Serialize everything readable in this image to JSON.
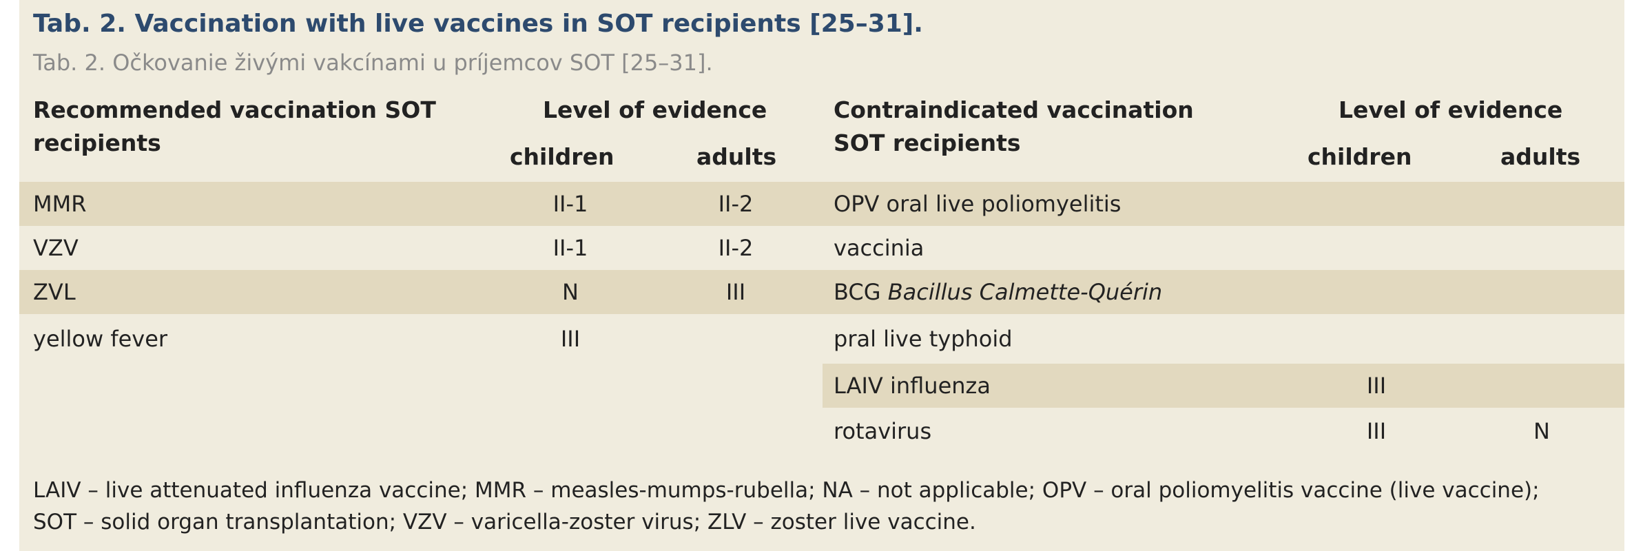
{
  "title": "Tab. 2. Vaccination with live vaccines in SOT recipients [25–31].",
  "subtitle": "Tab. 2. Očkovanie živými vakcínami u príjemcov SOT [25–31].",
  "left_header": {
    "col1_line1": "Recommended vaccination SOT",
    "col1_line2": "recipients",
    "level": "Level of evidence",
    "children": "children",
    "adults": "adults"
  },
  "right_header": {
    "col1_line1": "Contraindicated vaccination",
    "col1_line2": "SOT recipients",
    "level": "Level of evidence",
    "children": "children",
    "adults": "adults"
  },
  "left_rows": [
    {
      "name": "MMR",
      "children": "II-1",
      "adults": "II-2"
    },
    {
      "name": "VZV",
      "children": "II-1",
      "adults": "II-2"
    },
    {
      "name": "ZVL",
      "children": "N",
      "adults": "III"
    },
    {
      "name": "yellow fever",
      "children": "III",
      "adults": ""
    }
  ],
  "right_rows": [
    {
      "name": "OPV oral live poliomyelitis",
      "name_italic": "",
      "children": "",
      "adults": ""
    },
    {
      "name": "vaccinia",
      "name_italic": "",
      "children": "",
      "adults": ""
    },
    {
      "name": "BCG ",
      "name_italic": "Bacillus Calmette-Quérin",
      "children": "",
      "adults": ""
    },
    {
      "name": "pral live typhoid",
      "name_italic": "",
      "children": "",
      "adults": ""
    },
    {
      "name": "LAIV influenza",
      "name_italic": "",
      "children": "III",
      "adults": ""
    },
    {
      "name": "rotavirus",
      "name_italic": "",
      "children": "III",
      "adults": "N"
    }
  ],
  "footnote": {
    "line1": "LAIV – live attenuated influenza vaccine; MMR – measles-mumps-rubella; NA – not applicable; OPV – oral poliomyelitis vaccine (live vaccine);",
    "line2": "SOT – solid organ transplantation; VZV – varicella-zoster virus; ZLV – zoster live vaccine."
  },
  "colors": {
    "background": "#f0ecde",
    "band": "#e2d9bf",
    "title": "#2d4a6e",
    "subtitle": "#8a8a8a"
  }
}
